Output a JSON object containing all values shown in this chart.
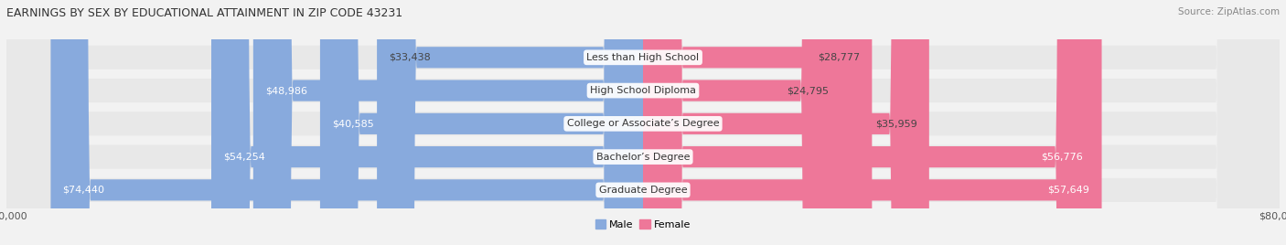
{
  "title": "EARNINGS BY SEX BY EDUCATIONAL ATTAINMENT IN ZIP CODE 43231",
  "source": "Source: ZipAtlas.com",
  "categories": [
    "Less than High School",
    "High School Diploma",
    "College or Associate’s Degree",
    "Bachelor’s Degree",
    "Graduate Degree"
  ],
  "male_values": [
    33438,
    48986,
    40585,
    54254,
    74440
  ],
  "female_values": [
    28777,
    24795,
    35959,
    56776,
    57649
  ],
  "male_color": "#88AADD",
  "female_color": "#EE7799",
  "male_label": "Male",
  "female_label": "Female",
  "xlim": 80000,
  "bg_color": "#f2f2f2",
  "bar_bg_color": "#e0e0e0",
  "row_bg_color": "#e8e8e8",
  "title_fontsize": 9,
  "source_fontsize": 7.5,
  "val_fontsize": 8,
  "cat_fontsize": 8,
  "tick_fontsize": 8
}
